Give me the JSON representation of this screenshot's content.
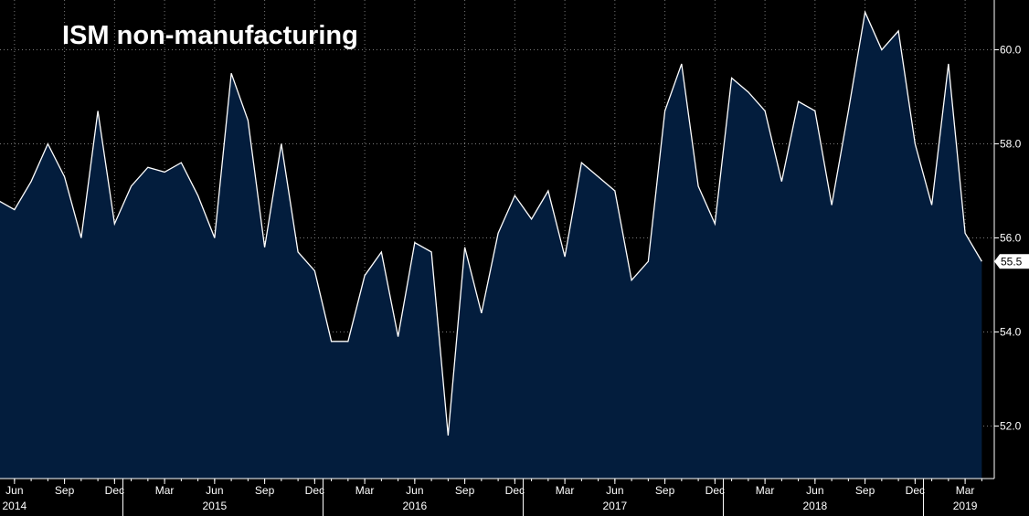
{
  "colors": {
    "background": "#000000",
    "area_fill": "#031d3d",
    "line": "#ffffff",
    "grid": "#7a7a7a",
    "badge": "#ffffff"
  },
  "chart_data": {
    "type": "area",
    "title": "ISM non-manufacturing",
    "xlabel": "",
    "ylabel": "",
    "ylim": [
      50.9,
      60.9
    ],
    "yticks": [
      "52.0",
      "54.0",
      "56.0",
      "58.0",
      "60.0"
    ],
    "grid": true,
    "last_value_label": "55.5",
    "x_start": "2014-05",
    "x_end": "2019-04",
    "series": [
      {
        "x": [
          "2014-05",
          "2014-06",
          "2014-07",
          "2014-08",
          "2014-09",
          "2014-10",
          "2014-11",
          "2014-12",
          "2015-01",
          "2015-02",
          "2015-03",
          "2015-04",
          "2015-05",
          "2015-06",
          "2015-07",
          "2015-08",
          "2015-09",
          "2015-10",
          "2015-11",
          "2015-12",
          "2016-01",
          "2016-02",
          "2016-03",
          "2016-04",
          "2016-05",
          "2016-06",
          "2016-07",
          "2016-08",
          "2016-09",
          "2016-10",
          "2016-11",
          "2016-12",
          "2017-01",
          "2017-02",
          "2017-03",
          "2017-04",
          "2017-05",
          "2017-06",
          "2017-07",
          "2017-08",
          "2017-09",
          "2017-10",
          "2017-11",
          "2017-12",
          "2018-01",
          "2018-02",
          "2018-03",
          "2018-04",
          "2018-05",
          "2018-06",
          "2018-07",
          "2018-08",
          "2018-09",
          "2018-10",
          "2018-11",
          "2018-12",
          "2019-01",
          "2019-02",
          "2019-03",
          "2019-04"
        ],
        "values": [
          56.8,
          56.6,
          57.2,
          58.0,
          57.3,
          56.0,
          58.7,
          56.3,
          57.1,
          57.5,
          57.4,
          57.6,
          56.9,
          56.0,
          59.5,
          58.5,
          55.8,
          58.0,
          55.7,
          55.3,
          53.8,
          53.8,
          55.2,
          55.7,
          53.9,
          55.9,
          55.7,
          51.8,
          55.8,
          54.4,
          56.1,
          56.9,
          56.4,
          57.0,
          55.6,
          57.6,
          57.3,
          57.0,
          55.1,
          55.5,
          58.7,
          59.7,
          57.1,
          56.3,
          59.4,
          59.1,
          58.7,
          57.2,
          58.9,
          58.7,
          56.7,
          58.7,
          60.8,
          60.0,
          60.4,
          58.0,
          56.7,
          59.7,
          56.1,
          55.5
        ]
      }
    ],
    "x_month_ticks": [
      {
        "x": "2014-06",
        "label": "Jun"
      },
      {
        "x": "2014-09",
        "label": "Sep"
      },
      {
        "x": "2014-12",
        "label": "Dec"
      },
      {
        "x": "2015-03",
        "label": "Mar"
      },
      {
        "x": "2015-06",
        "label": "Jun"
      },
      {
        "x": "2015-09",
        "label": "Sep"
      },
      {
        "x": "2015-12",
        "label": "Dec"
      },
      {
        "x": "2016-03",
        "label": "Mar"
      },
      {
        "x": "2016-06",
        "label": "Jun"
      },
      {
        "x": "2016-09",
        "label": "Sep"
      },
      {
        "x": "2016-12",
        "label": "Dec"
      },
      {
        "x": "2017-03",
        "label": "Mar"
      },
      {
        "x": "2017-06",
        "label": "Jun"
      },
      {
        "x": "2017-09",
        "label": "Sep"
      },
      {
        "x": "2017-12",
        "label": "Dec"
      },
      {
        "x": "2018-03",
        "label": "Mar"
      },
      {
        "x": "2018-06",
        "label": "Jun"
      },
      {
        "x": "2018-09",
        "label": "Sep"
      },
      {
        "x": "2018-12",
        "label": "Dec"
      },
      {
        "x": "2019-03",
        "label": "Mar"
      }
    ],
    "x_year_labels": [
      {
        "x": "2014-06",
        "label": "2014"
      },
      {
        "x": "2015-06",
        "label": "2015"
      },
      {
        "x": "2016-06",
        "label": "2016"
      },
      {
        "x": "2017-06",
        "label": "2017"
      },
      {
        "x": "2018-06",
        "label": "2018"
      },
      {
        "x": "2019-03",
        "label": "2019"
      }
    ],
    "x_year_boundaries": [
      "2015-01",
      "2016-01",
      "2017-01",
      "2018-01",
      "2019-01"
    ]
  }
}
